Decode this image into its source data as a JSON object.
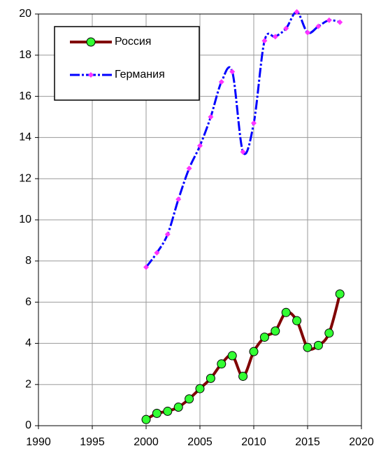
{
  "chart_data": {
    "type": "line",
    "x": [
      2000,
      2001,
      2002,
      2003,
      2004,
      2005,
      2006,
      2007,
      2008,
      2009,
      2010,
      2011,
      2012,
      2013,
      2014,
      2015,
      2016,
      2017,
      2018
    ],
    "series": [
      {
        "name": "Россия",
        "color": "#800000",
        "marker_color": "#33ff33",
        "values": [
          0.3,
          0.6,
          0.7,
          0.9,
          1.3,
          1.8,
          2.3,
          3.0,
          3.4,
          2.4,
          3.6,
          4.3,
          4.6,
          5.5,
          5.1,
          3.8,
          3.9,
          4.5,
          6.4
        ]
      },
      {
        "name": "Германия",
        "color": "#0000ff",
        "marker_color": "#ff33ff",
        "values": [
          7.7,
          8.4,
          9.3,
          11.0,
          12.5,
          13.6,
          15.0,
          16.7,
          17.2,
          13.3,
          14.7,
          18.7,
          18.9,
          19.3,
          20.1,
          19.1,
          19.4,
          19.7,
          19.6
        ]
      }
    ],
    "xlim": [
      1990,
      2020
    ],
    "xticks": [
      1990,
      1995,
      2000,
      2005,
      2010,
      2015,
      2020
    ],
    "ylim": [
      0,
      20
    ],
    "yticks": [
      0,
      2,
      4,
      6,
      8,
      10,
      12,
      14,
      16,
      18,
      20
    ],
    "grid": true,
    "legend": "upper left"
  }
}
